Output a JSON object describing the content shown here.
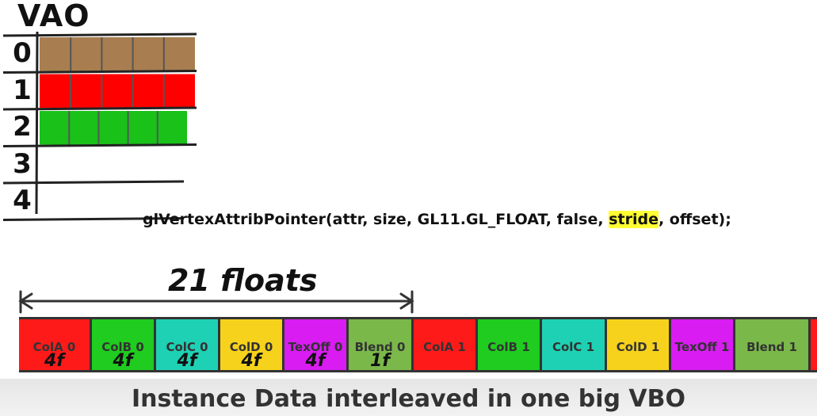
{
  "vao": {
    "title": "VAO",
    "rows": [
      {
        "index": "0",
        "color": "#a87e50",
        "filled": true
      },
      {
        "index": "1",
        "color": "#ff0000",
        "filled": true
      },
      {
        "index": "2",
        "color": "#19c119",
        "filled": true
      },
      {
        "index": "3",
        "color": "",
        "filled": false
      },
      {
        "index": "4",
        "color": "",
        "filled": false
      }
    ]
  },
  "code": {
    "before": "glVertexAttribPointer(attr, size, GL11.GL_FLOAT, false, ",
    "highlight": "stride",
    "after": ", offset);"
  },
  "stride_label": "21 floats",
  "vbo": {
    "cells": [
      {
        "label": "ColA 0",
        "size": "4f",
        "color": "#ff1a1a"
      },
      {
        "label": "ColB 0",
        "size": "4f",
        "color": "#1fcc1f"
      },
      {
        "label": "ColC 0",
        "size": "4f",
        "color": "#1fd1b4"
      },
      {
        "label": "ColD 0",
        "size": "4f",
        "color": "#f7d21c"
      },
      {
        "label": "TexOff 0",
        "size": "4f",
        "color": "#d91cf2"
      },
      {
        "label": "Blend 0",
        "size": "1f",
        "color": "#7ab84a"
      },
      {
        "label": "ColA 1",
        "size": "",
        "color": "#ff1a1a"
      },
      {
        "label": "ColB 1",
        "size": "",
        "color": "#1fcc1f"
      },
      {
        "label": "ColC 1",
        "size": "",
        "color": "#1fd1b4"
      },
      {
        "label": "ColD 1",
        "size": "",
        "color": "#f7d21c"
      },
      {
        "label": "TexOff 1",
        "size": "",
        "color": "#d91cf2"
      },
      {
        "label": "Blend 1",
        "size": "",
        "color": "#7ab84a"
      },
      {
        "label": "C",
        "size": "",
        "color": "#ff1a1a"
      }
    ]
  },
  "caption": "Instance Data interleaved in one big VBO"
}
